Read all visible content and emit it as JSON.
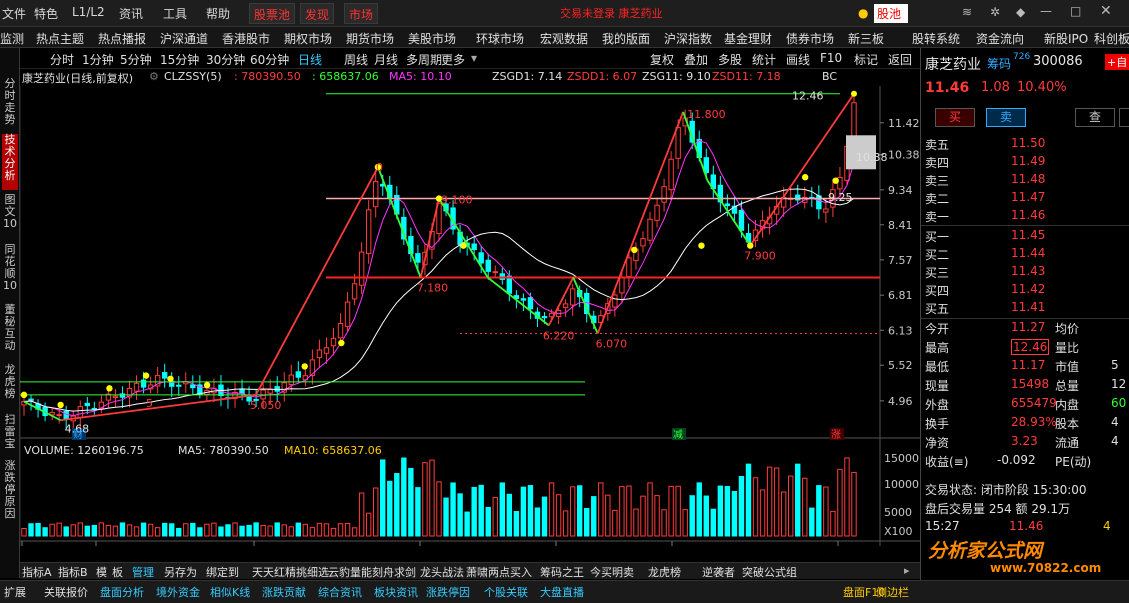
{
  "menu": {
    "items": [
      "文件",
      "特色",
      "L1/L2",
      "资讯",
      "工具",
      "帮助"
    ],
    "red_buttons": [
      "股票池",
      "发现",
      "市场"
    ],
    "notice": "交易未登录  康芝药业",
    "right_button": "股池"
  },
  "toolbar2": [
    "监测",
    "热点主题",
    "热点播报",
    "沪深通道",
    "香港股市",
    "期权市场",
    "期货市场",
    "美股市场",
    "环球市场",
    "宏观数据",
    "我的版面",
    "沪深指数",
    "基金理财",
    "债券市场",
    "新三板",
    "股转系统",
    "资金流向",
    "新股IPO",
    "科创板"
  ],
  "leftbar": [
    {
      "label": "分时走势",
      "active": false
    },
    {
      "label": "技术分析",
      "active": true
    },
    {
      "label": "图文10",
      "active": false
    },
    {
      "label": "同花顺10",
      "active": false
    },
    {
      "label": "董秘互动",
      "active": false
    },
    {
      "label": "龙虎榜",
      "active": false
    },
    {
      "label": "扫雷宝",
      "active": false
    },
    {
      "label": "涨跌停原因",
      "active": false
    }
  ],
  "periods": [
    "分时",
    "1分钟",
    "5分钟",
    "15分钟",
    "30分钟",
    "60分钟",
    "日线",
    "周线",
    "月线",
    "多周期",
    "更多"
  ],
  "selected_period": "日线",
  "chart_tools": [
    "复权",
    "叠加",
    "多股",
    "统计",
    "画线",
    "F10",
    "标记",
    "返回"
  ],
  "info": {
    "name": "康芝药业(日线,前复权)",
    "indicator": "CLZSSY(5)",
    "v1": ": 780390.50",
    "v2": ": 658637.06",
    "ma5": "MA5: 10.10",
    "zsgd1": "ZSGD1: 7.14",
    "zsdd1": "ZSDD1: 6.07",
    "zsg11": "ZSG11: 9.10",
    "zsd11": "ZSD11: 7.18",
    "bc": "BC"
  },
  "volume_info": {
    "volume": "VOLUME: 1260196.75",
    "ma5": "MA5: 780390.50",
    "ma10": "MA10: 658637.06"
  },
  "price_axis": [
    "11.42",
    "10.38",
    "9.34",
    "8.41",
    "7.57",
    "6.81",
    "6.13",
    "5.52",
    "4.96"
  ],
  "current_price_tag": "10.38",
  "volume_axis": [
    "15000",
    "10000",
    "5000",
    "X100"
  ],
  "date_axis": [
    "2021年",
    "11",
    "12",
    "1",
    "2",
    "3",
    "4"
  ],
  "period_label": "日线",
  "annotations": {
    "high": "12.46",
    "p1": "11.800",
    "p2": "9.100",
    "p3": "7.180",
    "p4": "6.220",
    "p5": "6.070",
    "p6": "7.900",
    "p7": "5.050",
    "p8": "4.68",
    "p9": "9.25",
    "p10": "0",
    "p11": "5",
    "cai": "财",
    "jian": "减",
    "zhang": "涨"
  },
  "chart_data": {
    "type": "candlestick",
    "title": "康芝药业(日线,前复权)",
    "y_ticks": [
      4.96,
      5.52,
      6.13,
      6.81,
      7.57,
      8.41,
      9.34,
      10.38,
      11.42
    ],
    "x_ticks": [
      "2021年",
      "11",
      "12",
      "1",
      "2",
      "3",
      "4"
    ],
    "high": 12.46,
    "close": 11.46,
    "zigzag_points": [
      {
        "label": "4.68",
        "value": 4.68
      },
      {
        "label": "5.050",
        "value": 5.05
      },
      {
        "label": "11.800",
        "value": 11.8
      },
      {
        "label": "9.100",
        "value": 9.1
      },
      {
        "label": "7.180",
        "value": 7.18
      },
      {
        "label": "6.220",
        "value": 6.22
      },
      {
        "label": "6.070",
        "value": 6.07
      },
      {
        "label": "7.900",
        "value": 7.9
      },
      {
        "label": "12.46",
        "value": 12.46
      }
    ],
    "volume": {
      "volume": 1260196.75,
      "ma5": 780390.5,
      "ma10": 658637.06
    }
  },
  "bottom_tabs": [
    "指标A",
    "指标B",
    "模",
    "板",
    "管理",
    "另存为",
    "绑定到",
    "天天红精挑细选",
    "云豹量能",
    "刻舟求剑",
    "龙头战法",
    "萧啸两点买入",
    "筹码之王",
    "今买明卖",
    "龙虎榜",
    "逆袭者",
    "突破公式组"
  ],
  "status_bar": [
    "扩展",
    "关联报价",
    "盘面分析",
    "境外资金",
    "相似K线",
    "涨跌贡献",
    "综合资讯",
    "板块资讯",
    "涨跌停因",
    "个股关联",
    "大盘直播"
  ],
  "status_right": [
    "盘面F10",
    "侧边栏"
  ],
  "right_panel": {
    "name": "康芝药业",
    "code_label": "筹码",
    "code_sup": "726",
    "code": "300086",
    "self_btn": "+自",
    "price": "11.46",
    "change": "1.08",
    "pct": "10.40%",
    "buttons": [
      "买",
      "卖",
      "查",
      ""
    ],
    "sells": [
      {
        "label": "卖五",
        "price": "11.50"
      },
      {
        "label": "卖四",
        "price": "11.49"
      },
      {
        "label": "卖三",
        "price": "11.48"
      },
      {
        "label": "卖二",
        "price": "11.47"
      },
      {
        "label": "卖一",
        "price": "11.46"
      }
    ],
    "buys": [
      {
        "label": "买一",
        "price": "11.45"
      },
      {
        "label": "买二",
        "price": "11.44"
      },
      {
        "label": "买三",
        "price": "11.43"
      },
      {
        "label": "买四",
        "price": "11.42"
      },
      {
        "label": "买五",
        "price": "11.41"
      }
    ],
    "stats": [
      {
        "l1": "今开",
        "v1": "11.27",
        "l2": "均价",
        "v2": ""
      },
      {
        "l1": "最高",
        "v1": "12.46",
        "l2": "量比",
        "v2": ""
      },
      {
        "l1": "最低",
        "v1": "11.17",
        "l2": "市值",
        "v2": "5"
      },
      {
        "l1": "现量",
        "v1": "15498",
        "l2": "总量",
        "v2": "12"
      },
      {
        "l1": "外盘",
        "v1": "655479",
        "l2": "内盘",
        "v2": "60"
      },
      {
        "l1": "换手",
        "v1": "28.93%",
        "l2": "股本",
        "v2": "4"
      },
      {
        "l1": "净资",
        "v1": "3.23",
        "l2": "流通",
        "v2": "4"
      },
      {
        "l1": "收益(≡)",
        "v1": "-0.092",
        "l2": "PE(动)",
        "v2": ""
      }
    ],
    "trade_state": "交易状态: 闭市阶段 15:30:00",
    "after_trade": "盘后交易量 254 额 29.1万",
    "last_tick": {
      "time": "15:27",
      "price": "11.46",
      "vol": "4"
    }
  },
  "watermark": "分析家公式网",
  "watermark_url": "www.70822.com"
}
